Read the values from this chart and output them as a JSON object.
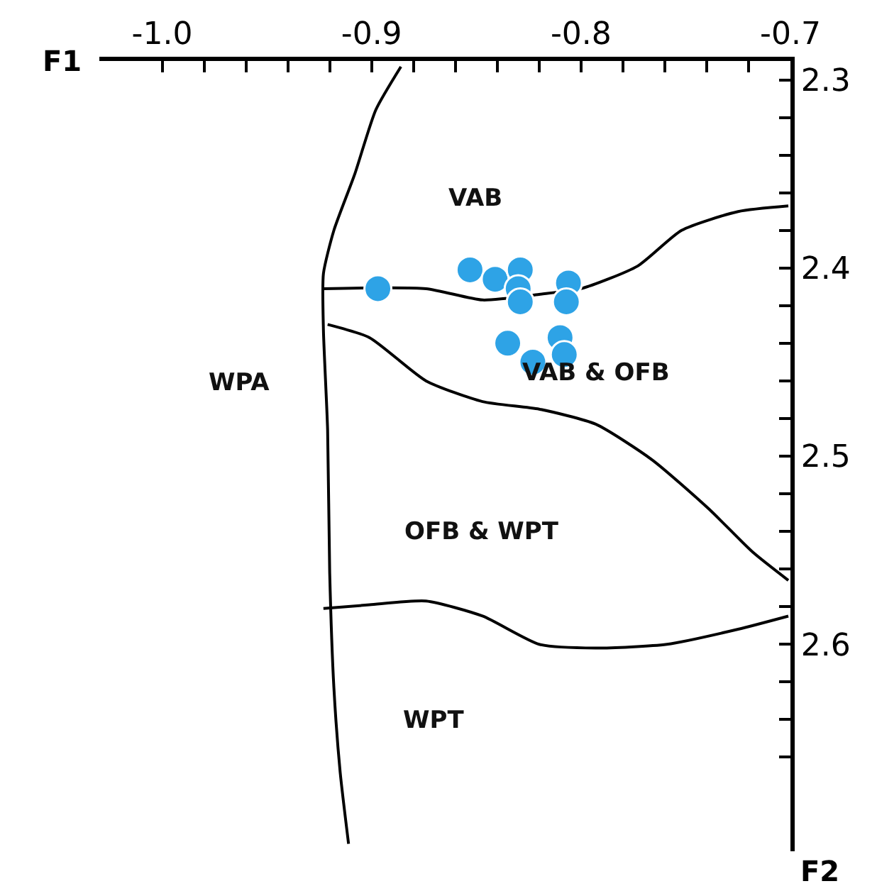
{
  "chart_data": {
    "type": "scatter",
    "xlabel": "F1",
    "ylabel": "F2",
    "xlim": [
      -1.03,
      -0.7
    ],
    "ylim": [
      2.71,
      2.29
    ],
    "xticks": [
      {
        "value": -1.0,
        "label": "-1.0"
      },
      {
        "value": -0.98,
        "label": null
      },
      {
        "value": -0.96,
        "label": null
      },
      {
        "value": -0.94,
        "label": null
      },
      {
        "value": -0.92,
        "label": null
      },
      {
        "value": -0.9,
        "label": "-0.9"
      },
      {
        "value": -0.88,
        "label": null
      },
      {
        "value": -0.86,
        "label": null
      },
      {
        "value": -0.84,
        "label": null
      },
      {
        "value": -0.82,
        "label": null
      },
      {
        "value": -0.8,
        "label": "-0.8"
      },
      {
        "value": -0.78,
        "label": null
      },
      {
        "value": -0.76,
        "label": null
      },
      {
        "value": -0.74,
        "label": null
      },
      {
        "value": -0.72,
        "label": null
      },
      {
        "value": -0.7,
        "label": "-0.7"
      }
    ],
    "yticks": [
      2.3,
      {
        "value": 2.32,
        "label": null
      },
      {
        "value": 2.34,
        "label": null
      },
      {
        "value": 2.36,
        "label": null
      },
      {
        "value": 2.38,
        "label": null
      },
      2.4,
      {
        "value": 2.42,
        "label": null
      },
      {
        "value": 2.44,
        "label": null
      },
      {
        "value": 2.46,
        "label": null
      },
      {
        "value": 2.48,
        "label": null
      },
      2.5,
      {
        "value": 2.52,
        "label": null
      },
      {
        "value": 2.54,
        "label": null
      },
      {
        "value": 2.56,
        "label": null
      },
      {
        "value": 2.58,
        "label": null
      },
      2.6,
      {
        "value": 2.62,
        "label": null
      },
      {
        "value": 2.64,
        "label": null
      },
      {
        "value": 2.66,
        "label": null
      }
    ],
    "series": [
      {
        "type": "line",
        "color": "#000000",
        "marker": "none",
        "x": [
          -0.886,
          -0.898,
          -0.908,
          -0.918,
          -0.923,
          -0.923,
          -0.921,
          -0.92,
          -0.918,
          -0.915,
          -0.911
        ],
        "values": [
          2.293,
          2.316,
          2.35,
          2.38,
          2.403,
          2.433,
          2.486,
          2.562,
          2.623,
          2.668,
          2.706
        ]
      },
      {
        "type": "line",
        "color": "#000000",
        "marker": "none",
        "x": [
          -0.923,
          -0.874,
          -0.847,
          -0.82,
          -0.8,
          -0.773,
          -0.752,
          -0.725,
          -0.701
        ],
        "values": [
          2.411,
          2.411,
          2.417,
          2.414,
          2.411,
          2.399,
          2.38,
          2.37,
          2.367
        ]
      },
      {
        "type": "line",
        "color": "#000000",
        "marker": "none",
        "x": [
          -0.921,
          -0.901,
          -0.874,
          -0.847,
          -0.82,
          -0.793,
          -0.766,
          -0.739,
          -0.718,
          -0.701
        ],
        "values": [
          2.43,
          2.437,
          2.46,
          2.471,
          2.475,
          2.483,
          2.502,
          2.528,
          2.551,
          2.566
        ]
      },
      {
        "type": "line",
        "color": "#000000",
        "marker": "none",
        "x": [
          -0.923,
          -0.901,
          -0.874,
          -0.847,
          -0.82,
          -0.793,
          -0.759,
          -0.725,
          -0.701
        ],
        "values": [
          2.581,
          2.579,
          2.577,
          2.585,
          2.6,
          2.602,
          2.6,
          2.592,
          2.585
        ]
      },
      {
        "color": "#2ea3e6",
        "marker": "circle",
        "x": [
          -0.897,
          -0.853,
          -0.841,
          -0.829,
          -0.83,
          -0.829,
          -0.806,
          -0.807,
          -0.835,
          -0.823,
          -0.81,
          -0.808
        ],
        "values": [
          2.411,
          2.401,
          2.406,
          2.401,
          2.411,
          2.418,
          2.408,
          2.418,
          2.44,
          2.45,
          2.437,
          2.446
        ]
      }
    ],
    "annotations": [
      "VAB",
      "VAB & OFB",
      "WPA",
      "OFB & WPT",
      "WPT"
    ]
  }
}
